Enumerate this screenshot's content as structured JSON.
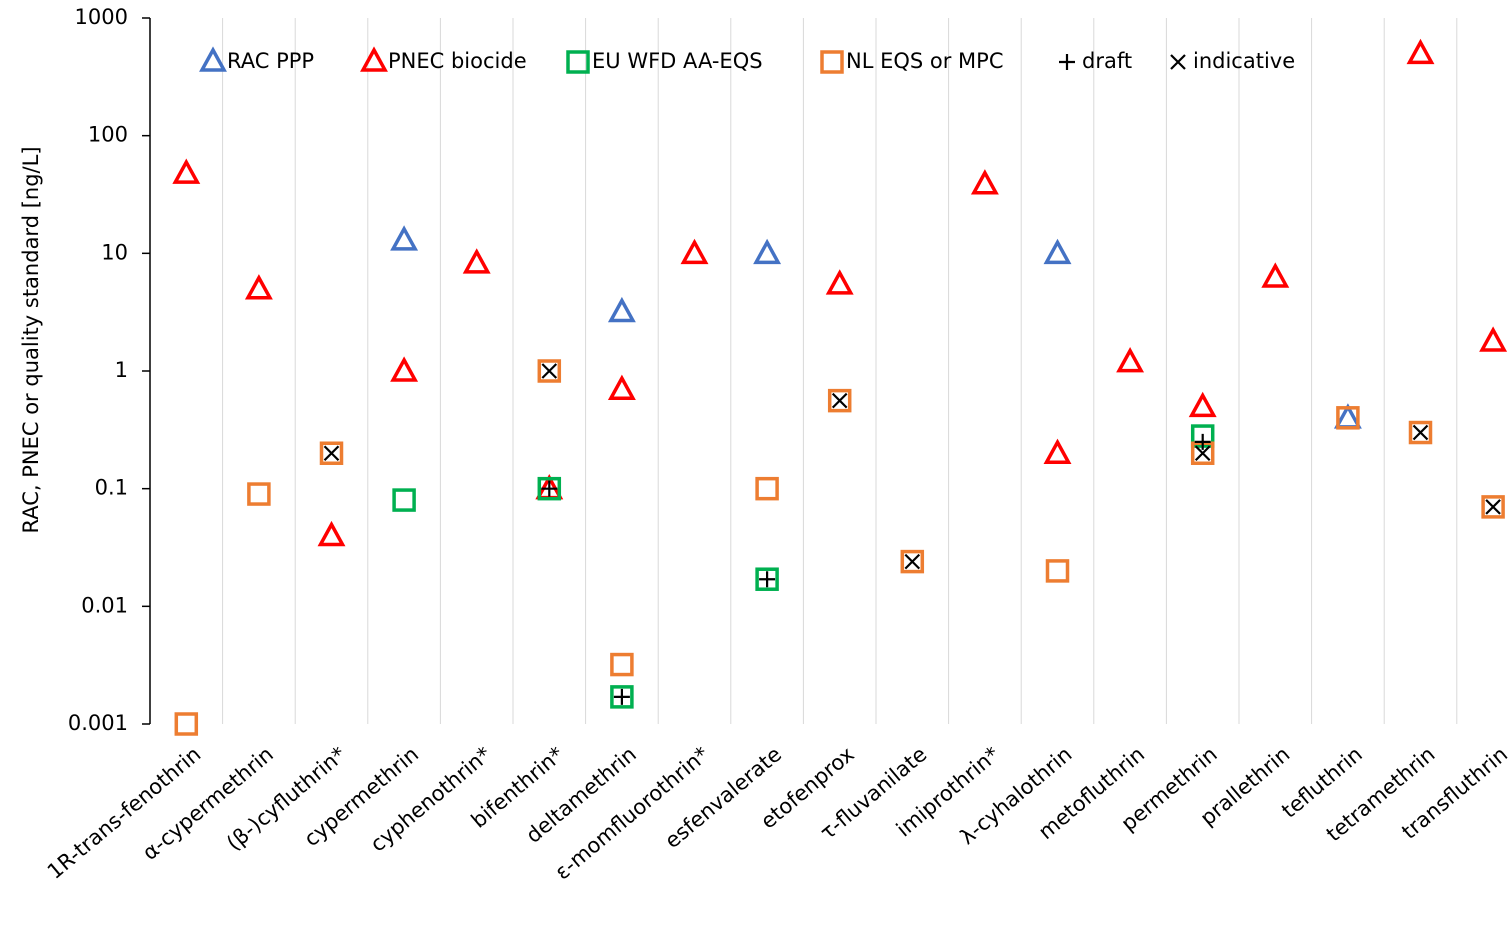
{
  "chart_data": {
    "type": "scatter",
    "y_label": "RAC, PNEC or quality standard [ng/L]",
    "log_y": true,
    "grid": true,
    "legend": "top",
    "categories": [
      "1R-trans-fenothrin",
      "α-cypermethrin",
      "(β-)cyfluthrin*",
      "cypermethrin",
      "cyphenothrin*",
      "bifenthrin*",
      "deltamethrin",
      "ε-momfluorothrin*",
      "esfenvalerate",
      "etofenprox",
      "τ-fluvanilate",
      "imiprothrin*",
      "λ-cyhalothrin",
      "metofluthrin",
      "permethrin",
      "prallethrin",
      "tefluthrin",
      "tetramethrin",
      "transfluthrin"
    ],
    "ylim": [
      0.001,
      1000
    ],
    "yticks": [
      0.001,
      0.01,
      0.1,
      1,
      10,
      100,
      1000
    ],
    "series": [
      {
        "name": "RAC PPP",
        "color": "#4472c4",
        "marker": "triangle",
        "values": [
          null,
          null,
          null,
          13,
          null,
          null,
          3.2,
          null,
          10,
          null,
          null,
          null,
          10,
          null,
          null,
          null,
          0.4,
          null,
          null
        ]
      },
      {
        "name": "PNEC biocide",
        "color": "#ff0000",
        "marker": "triangle",
        "values": [
          48,
          5,
          0.04,
          1,
          8.3,
          0.1,
          0.7,
          10,
          null,
          5.5,
          null,
          39,
          0.2,
          1.2,
          0.5,
          6.3,
          null,
          500,
          1.8
        ]
      },
      {
        "name": "EU WFD AA-EQS",
        "color": "#00b050",
        "marker": "square",
        "values": [
          null,
          null,
          null,
          0.08,
          null,
          0.1,
          0.0017,
          null,
          0.017,
          null,
          null,
          null,
          null,
          null,
          0.28,
          null,
          null,
          null,
          null
        ]
      },
      {
        "name": "NL EQS or MPC",
        "color": "#ed7d31",
        "marker": "square",
        "values": [
          0.001,
          0.09,
          0.2,
          null,
          null,
          1,
          0.0032,
          null,
          0.1,
          0.56,
          0.024,
          null,
          0.02,
          null,
          0.2,
          null,
          0.4,
          0.3,
          0.07
        ]
      },
      {
        "name": "draft",
        "color": "#000000",
        "marker": "plus",
        "values": [
          null,
          null,
          null,
          null,
          null,
          0.1,
          0.0017,
          null,
          0.017,
          null,
          null,
          null,
          null,
          null,
          0.25,
          null,
          null,
          null,
          null
        ]
      },
      {
        "name": "indicative",
        "color": "#000000",
        "marker": "cross",
        "values": [
          null,
          null,
          0.2,
          null,
          null,
          1,
          null,
          null,
          null,
          0.56,
          0.024,
          null,
          null,
          null,
          0.2,
          null,
          null,
          0.3,
          0.07
        ]
      }
    ]
  }
}
